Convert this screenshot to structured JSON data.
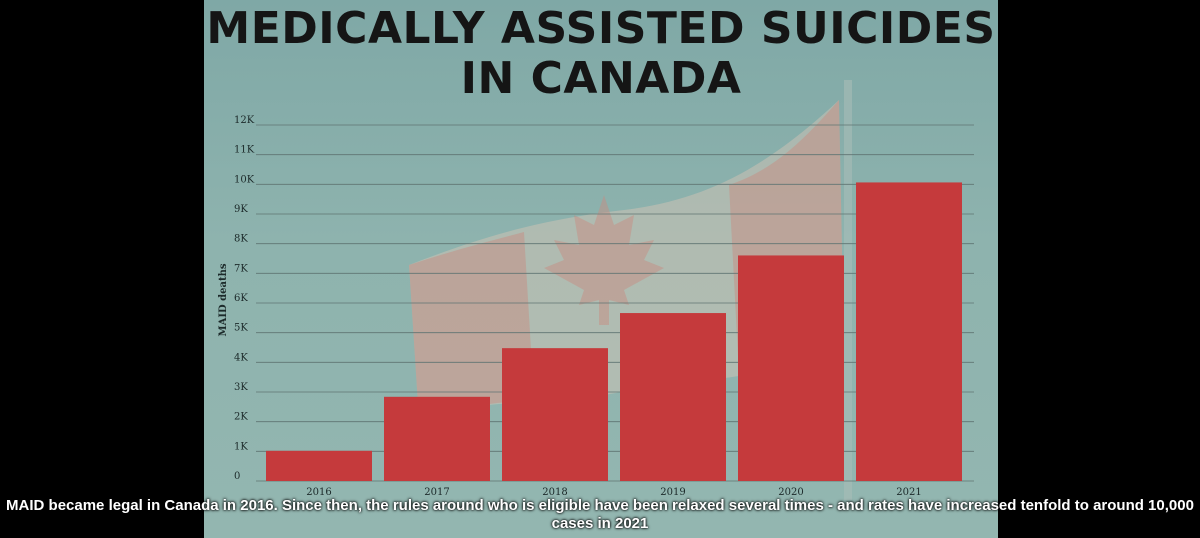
{
  "caption": "MAID became legal in Canada in 2016. Since then, the rules around who is eligible have been relaxed several times - and rates have increased tenfold to around 10,000 cases in 2021",
  "colors": {
    "bar": "#c53a3c",
    "grid": "#5f7472",
    "background": "#8eb3ae"
  },
  "chart_data": {
    "type": "bar",
    "title_lines": [
      "MEDICALLY ASSISTED SUICIDES",
      "IN CANADA"
    ],
    "ylabel": "MAID deaths",
    "xlabel": "",
    "categories": [
      "2016",
      "2017",
      "2018",
      "2019",
      "2020",
      "2021"
    ],
    "values": [
      1018,
      2838,
      4478,
      5661,
      7603,
      10064
    ],
    "ylim": [
      0,
      12000
    ],
    "yticks": [
      0,
      1000,
      2000,
      3000,
      4000,
      5000,
      6000,
      7000,
      8000,
      9000,
      10000,
      11000,
      12000
    ],
    "ytick_labels": [
      "0",
      "1K",
      "2K",
      "3K",
      "4K",
      "5K",
      "6K",
      "7K",
      "8K",
      "9K",
      "10K",
      "11K",
      "12K"
    ],
    "grid": true
  }
}
